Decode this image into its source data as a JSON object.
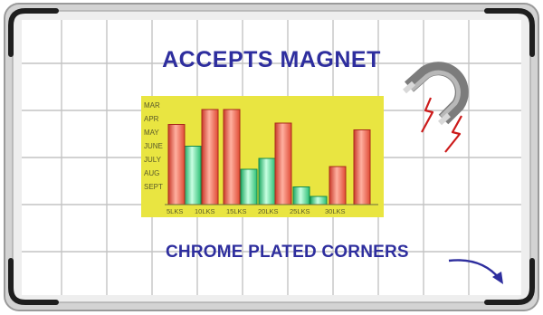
{
  "headline_top": "ACCEPTS MAGNET",
  "headline_bottom": "CHROME PLATED CORNERS",
  "colors": {
    "frame": "#d6d6d6",
    "grid": "#c4c4c4",
    "text": "#2e2e9e",
    "chart_bg": "#e9e541",
    "bar_red": "#ee5a45",
    "bar_green": "#3fcf83",
    "magnet": "#8a8a8a",
    "spark": "#cc1a1a"
  },
  "icons": [
    "horseshoe-magnet-icon",
    "lightning-spark-icon",
    "curved-arrow-icon"
  ],
  "chart_data": {
    "type": "bar",
    "y_categories": [
      "MAR",
      "APR",
      "MAY",
      "JUNE",
      "JULY",
      "AUG",
      "SEPT"
    ],
    "x_labels": [
      "5LKS",
      "10LKS",
      "15LKS",
      "20LKS",
      "25LKS",
      "30LKS"
    ],
    "series": [
      {
        "values": [
          5.9,
          7.0,
          7.0,
          6.0,
          2.8,
          5.5
        ]
      },
      {
        "values": [
          4.3,
          2.6,
          3.4,
          1.3,
          0.6
        ]
      }
    ],
    "title": "",
    "xlabel": "",
    "ylabel": ""
  }
}
